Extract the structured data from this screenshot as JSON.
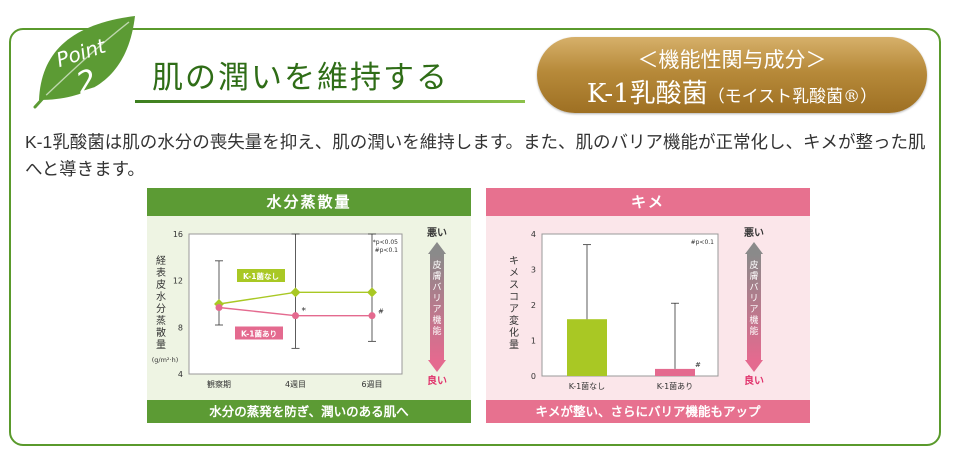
{
  "point": {
    "word": "Point",
    "number": "2"
  },
  "headline": "肌の潤いを維持する",
  "ingredient": {
    "line1": "＜機能性関与成分＞",
    "name": "K-1乳酸菌",
    "sub": "（モイスト乳酸菌®）"
  },
  "description": "K-1乳酸菌は肌の水分の喪失量を抑え、肌の潤いを維持します。また、肌のバリア機能が正常化し、キメが整った肌へと導きます。",
  "colors": {
    "green": "#5c9b34",
    "pink": "#e7718f",
    "lime": "#a9c824",
    "gold": "#b78a3a"
  },
  "chart_data": [
    {
      "type": "line",
      "title": "水分蒸散量",
      "ylabel": "経表皮水分蒸散量",
      "yunit": "(g/m²·h)",
      "ylim": [
        4,
        16
      ],
      "yticks": [
        4,
        8,
        12,
        16
      ],
      "categories": [
        "観察期",
        "4週目",
        "6週目"
      ],
      "series": [
        {
          "name": "K-1菌なし",
          "color": "#a9c824",
          "values": [
            10,
            11,
            11
          ],
          "err_low": [
            8.2,
            6.2,
            6.8
          ],
          "err_high": [
            13.7,
            16,
            16
          ]
        },
        {
          "name": "K-1菌あり",
          "color": "#e46a8f",
          "values": [
            9.7,
            9,
            9
          ],
          "err_low": null,
          "err_high": null
        }
      ],
      "markers": [
        "*",
        "#"
      ],
      "note": [
        "*p<0.05",
        "#p<0.1"
      ],
      "scale": {
        "bad": "悪い",
        "good": "良い",
        "label": "皮膚バリア機能"
      },
      "footer": "水分の蒸発を防ぎ、潤いのある肌へ"
    },
    {
      "type": "bar",
      "title": "キメ",
      "ylabel": "キメスコア変化量",
      "ylim": [
        0,
        4
      ],
      "yticks": [
        0,
        1,
        2,
        3,
        4
      ],
      "categories": [
        "K-1菌なし",
        "K-1菌あり"
      ],
      "values": [
        1.6,
        0.2
      ],
      "err_high": [
        3.7,
        2.05
      ],
      "colors": [
        "#a9c824",
        "#e46a8f"
      ],
      "markers": [
        "#"
      ],
      "note": [
        "#p<0.1"
      ],
      "scale": {
        "bad": "悪い",
        "good": "良い",
        "label": "皮膚バリア機能"
      },
      "footer": "キメが整い、さらにバリア機能もアップ"
    }
  ]
}
